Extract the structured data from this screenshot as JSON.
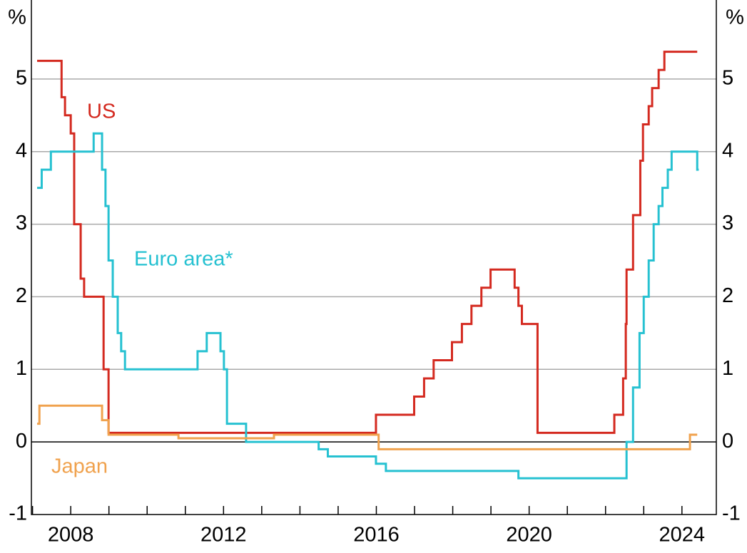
{
  "chart_data": {
    "type": "step",
    "y_unit_left": "%",
    "y_unit_right": "%",
    "xlim": [
      2006.97,
      2024.9
    ],
    "xticks": [
      2008,
      2012,
      2016,
      2020,
      2024
    ],
    "xminor": [
      2007,
      2008,
      2009,
      2010,
      2011,
      2012,
      2013,
      2014,
      2015,
      2016,
      2017,
      2018,
      2019,
      2020,
      2021,
      2022,
      2023,
      2024
    ],
    "ylim": [
      -1,
      6
    ],
    "yticks": [
      -1,
      0,
      1,
      2,
      3,
      4,
      5
    ],
    "grid": true,
    "series": [
      {
        "name": "US",
        "color": "#d42a20",
        "x": [
          2007.12,
          2007.76,
          2007.85,
          2008.0,
          2008.09,
          2008.26,
          2008.35,
          2008.86,
          2008.99,
          2015.99,
          2016.99,
          2017.25,
          2017.5,
          2017.98,
          2018.24,
          2018.49,
          2018.75,
          2018.99,
          2019.62,
          2019.72,
          2019.81,
          2020.22,
          2022.23,
          2022.46,
          2022.53,
          2022.55,
          2022.72,
          2022.91,
          2022.98,
          2023.13,
          2023.22,
          2023.39,
          2023.54,
          2024.4
        ],
        "values": [
          5.25,
          4.75,
          4.5,
          4.25,
          3.0,
          2.25,
          2.0,
          1.0,
          0.125,
          0.375,
          0.625,
          0.875,
          1.125,
          1.375,
          1.625,
          1.875,
          2.125,
          2.375,
          2.125,
          1.875,
          1.625,
          0.125,
          0.375,
          0.875,
          1.625,
          2.375,
          3.125,
          3.875,
          4.375,
          4.625,
          4.875,
          5.125,
          5.375,
          5.375
        ]
      },
      {
        "name": "Euro area*",
        "color": "#26c1d1",
        "x": [
          2007.12,
          2007.24,
          2007.48,
          2008.6,
          2008.82,
          2008.91,
          2008.99,
          2009.1,
          2009.23,
          2009.32,
          2009.42,
          2011.32,
          2011.56,
          2011.92,
          2012.01,
          2012.09,
          2012.59,
          2014.49,
          2014.73,
          2015.99,
          2016.25,
          2019.72,
          2022.55,
          2022.72,
          2022.89,
          2023.0,
          2023.13,
          2023.26,
          2023.39,
          2023.49,
          2023.63,
          2023.73,
          2024.4,
          2024.44
        ],
        "values": [
          3.5,
          3.75,
          4.0,
          4.25,
          3.75,
          3.25,
          2.5,
          2.0,
          1.5,
          1.25,
          1.0,
          1.25,
          1.5,
          1.25,
          1.0,
          0.25,
          0.0,
          -0.1,
          -0.2,
          -0.3,
          -0.4,
          -0.5,
          0.0,
          0.75,
          1.5,
          2.0,
          2.5,
          3.0,
          3.25,
          3.5,
          3.75,
          4.0,
          3.75,
          3.75
        ]
      },
      {
        "name": "Japan",
        "color": "#f0a24e",
        "x": [
          2007.12,
          2007.18,
          2008.82,
          2008.99,
          2010.82,
          2013.32,
          2016.06,
          2024.21,
          2024.4
        ],
        "values": [
          0.25,
          0.5,
          0.3,
          0.1,
          0.05,
          0.1,
          -0.1,
          0.1,
          0.1
        ]
      }
    ]
  }
}
